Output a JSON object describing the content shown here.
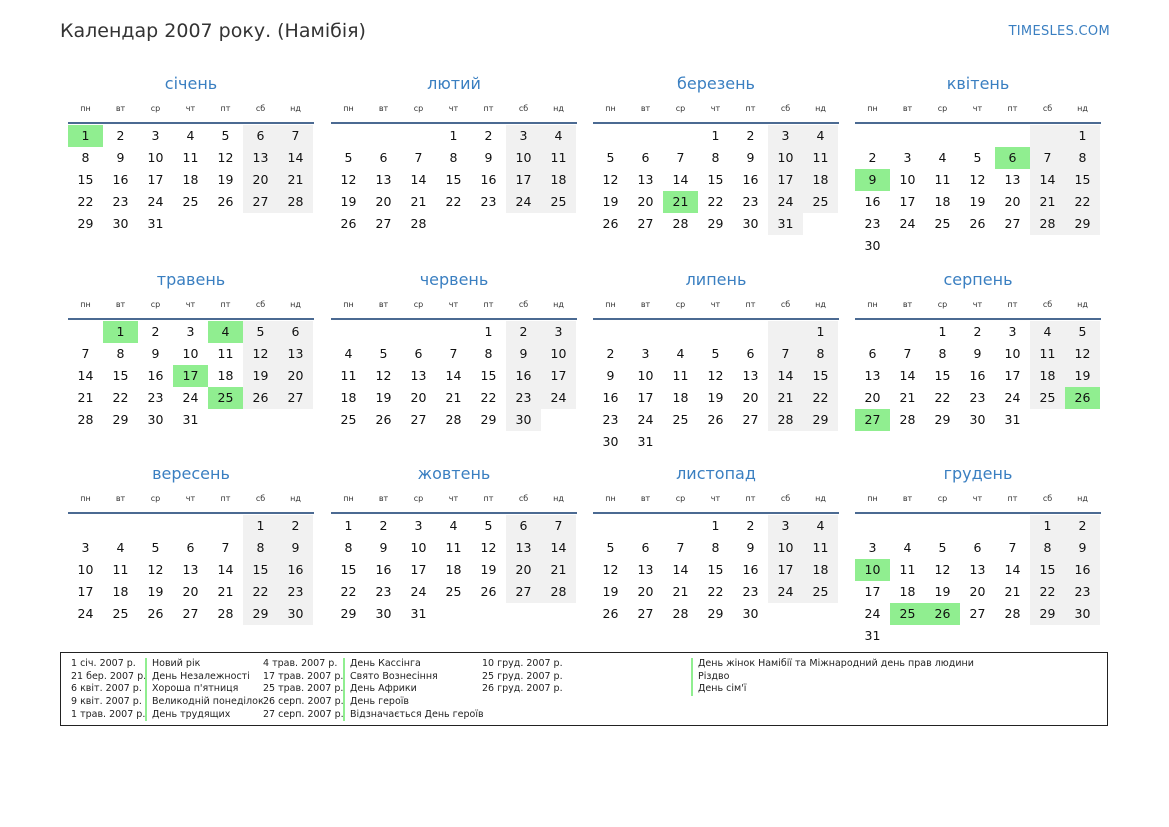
{
  "header": {
    "title": "Календар 2007 року. (Намібія)",
    "site": "TIMESLES.COM"
  },
  "weekday_labels": [
    "пн",
    "вт",
    "ср",
    "чт",
    "пт",
    "сб",
    "нд"
  ],
  "colors": {
    "accent": "#3a7fc1",
    "holiday": "#90ee90",
    "weekend": "#f1f1f1",
    "rule": "#4b6a92"
  },
  "months": [
    {
      "name": "січень",
      "offset": 0,
      "days": 31,
      "holidays": [
        1
      ]
    },
    {
      "name": "лютий",
      "offset": 3,
      "days": 28,
      "holidays": []
    },
    {
      "name": "березень",
      "offset": 3,
      "days": 31,
      "holidays": [
        21
      ]
    },
    {
      "name": "квітень",
      "offset": 6,
      "days": 30,
      "holidays": [
        6,
        9
      ]
    },
    {
      "name": "травень",
      "offset": 1,
      "days": 31,
      "holidays": [
        1,
        4,
        17,
        25
      ]
    },
    {
      "name": "червень",
      "offset": 4,
      "days": 30,
      "holidays": []
    },
    {
      "name": "липень",
      "offset": 6,
      "days": 31,
      "holidays": []
    },
    {
      "name": "серпень",
      "offset": 2,
      "days": 31,
      "holidays": [
        26,
        27
      ]
    },
    {
      "name": "вересень",
      "offset": 5,
      "days": 30,
      "holidays": []
    },
    {
      "name": "жовтень",
      "offset": 0,
      "days": 31,
      "holidays": []
    },
    {
      "name": "листопад",
      "offset": 3,
      "days": 30,
      "holidays": []
    },
    {
      "name": "грудень",
      "offset": 5,
      "days": 31,
      "holidays": [
        10,
        25,
        26
      ]
    }
  ],
  "holidays_legend": [
    [
      {
        "date": "1 січ. 2007 р.",
        "name": "Новий рік"
      },
      {
        "date": "21 бер. 2007 р.",
        "name": "День Незалежності"
      },
      {
        "date": "6 квіт. 2007 р.",
        "name": "Хороша п'ятниця"
      },
      {
        "date": "9 квіт. 2007 р.",
        "name": "Великодній понеділок"
      },
      {
        "date": "1 трав. 2007 р.",
        "name": "День трудящих"
      }
    ],
    [
      {
        "date": "4 трав. 2007 р.",
        "name": "День Кассінга"
      },
      {
        "date": "17 трав. 2007 р.",
        "name": "Свято Вознесіння"
      },
      {
        "date": "25 трав. 2007 р.",
        "name": "День Африки"
      },
      {
        "date": "26 серп. 2007 р.",
        "name": "День героїв"
      },
      {
        "date": "27 серп. 2007 р.",
        "name": "Відзначається День героїв"
      }
    ],
    [
      {
        "date": "10 груд. 2007 р.",
        "name": "День жінок Намібії та Міжнародний день прав людини"
      },
      {
        "date": "25 груд. 2007 р.",
        "name": "Різдво"
      },
      {
        "date": "26 груд. 2007 р.",
        "name": "День сім'ї"
      }
    ]
  ]
}
